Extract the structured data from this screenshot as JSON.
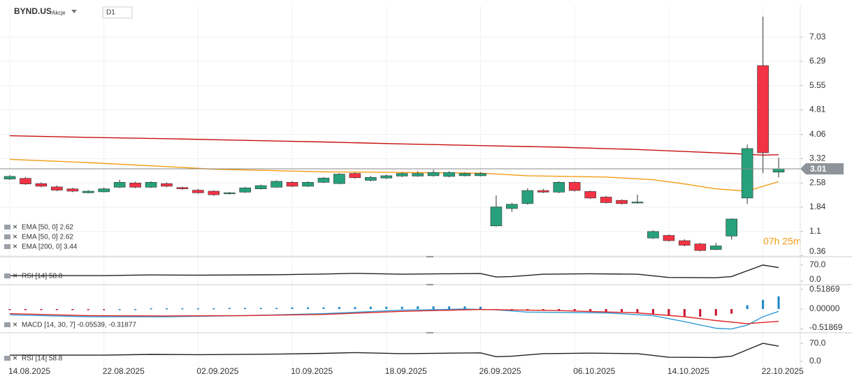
{
  "header": {
    "symbol": "BYND.US",
    "asset_class": "Akcje",
    "timeframe": "D1"
  },
  "chart_data": [
    {
      "type": "candlestick",
      "categories": [
        "14.08.2025",
        null,
        null,
        null,
        null,
        null,
        "22.08.2025",
        null,
        null,
        null,
        null,
        null,
        "02.09.2025",
        null,
        null,
        null,
        null,
        null,
        "10.09.2025",
        null,
        null,
        null,
        null,
        null,
        "18.09.2025",
        null,
        null,
        null,
        null,
        null,
        "26.09.2025",
        null,
        null,
        null,
        null,
        null,
        "06.10.2025",
        null,
        null,
        null,
        null,
        null,
        "14.10.2025",
        null,
        null,
        null,
        null,
        null,
        "22.10.2025",
        null
      ],
      "open": [
        2.7,
        2.72,
        2.56,
        2.46,
        2.4,
        2.28,
        2.31,
        2.45,
        2.58,
        2.45,
        2.56,
        2.44,
        2.36,
        2.33,
        2.25,
        2.3,
        2.4,
        2.45,
        2.6,
        2.48,
        2.6,
        2.56,
        2.87,
        2.66,
        2.73,
        2.79,
        2.79,
        2.8,
        2.78,
        2.8,
        2.8,
        1.27,
        1.8,
        1.95,
        2.35,
        2.3,
        2.6,
        2.32,
        2.15,
        2.05,
        1.98,
        0.9,
        0.98,
        0.82,
        0.72,
        0.55,
        0.96,
        2.12,
        6.16,
        2.91
      ],
      "high": [
        2.82,
        2.76,
        2.6,
        2.5,
        2.43,
        2.36,
        2.44,
        2.68,
        2.62,
        2.63,
        2.6,
        2.47,
        2.4,
        2.36,
        2.31,
        2.46,
        2.53,
        2.66,
        2.64,
        2.63,
        2.76,
        2.88,
        2.9,
        2.8,
        2.84,
        2.91,
        2.94,
        2.98,
        2.94,
        2.9,
        2.91,
        2.2,
        1.97,
        2.42,
        2.4,
        2.63,
        2.63,
        2.35,
        2.18,
        2.08,
        2.22,
        1.14,
        1.01,
        0.86,
        0.75,
        0.75,
        1.5,
        3.75,
        7.65,
        3.35
      ],
      "low": [
        2.67,
        2.52,
        2.45,
        2.33,
        2.3,
        2.26,
        2.29,
        2.43,
        2.42,
        2.43,
        2.45,
        2.37,
        2.25,
        2.19,
        2.23,
        2.28,
        2.38,
        2.43,
        2.45,
        2.46,
        2.58,
        2.54,
        2.71,
        2.63,
        2.7,
        2.76,
        2.77,
        2.77,
        2.75,
        2.78,
        2.78,
        1.25,
        1.7,
        1.92,
        2.27,
        2.27,
        2.32,
        2.09,
        1.95,
        1.92,
        1.95,
        0.87,
        0.79,
        0.65,
        0.49,
        0.53,
        0.85,
        1.94,
        2.88,
        2.75
      ],
      "close": [
        2.78,
        2.55,
        2.48,
        2.36,
        2.33,
        2.33,
        2.4,
        2.6,
        2.45,
        2.6,
        2.48,
        2.4,
        2.28,
        2.22,
        2.28,
        2.43,
        2.5,
        2.63,
        2.48,
        2.6,
        2.73,
        2.85,
        2.74,
        2.75,
        2.8,
        2.87,
        2.87,
        2.9,
        2.9,
        2.87,
        2.87,
        1.85,
        1.93,
        2.35,
        2.3,
        2.6,
        2.35,
        2.12,
        1.98,
        1.95,
        2.0,
        1.1,
        0.82,
        0.68,
        0.52,
        0.66,
        1.48,
        3.63,
        3.5,
        3.01
      ],
      "up_color": "#26a17b",
      "down_color": "#f23345",
      "ylim": [
        0.33,
        7.99
      ],
      "yticks": [
        7.03,
        6.29,
        5.55,
        4.81,
        4.06,
        3.32,
        2.58,
        1.84,
        1.1,
        0.36
      ],
      "grid": true,
      "last": 3.01,
      "countdown": "07h 25m",
      "legend": [
        "EMA [50, 0] 2.62",
        "EMA [50, 0] 2.62",
        "EMA [200, 0] 3.44"
      ],
      "series": [
        {
          "color": "#c81010",
          "x": [
            0,
            5,
            10,
            15,
            20,
            25,
            30,
            35,
            40,
            44,
            46,
            48,
            49
          ],
          "values": [
            4.02,
            3.97,
            3.93,
            3.88,
            3.83,
            3.77,
            3.72,
            3.67,
            3.6,
            3.52,
            3.48,
            3.43,
            3.44
          ]
        },
        {
          "color": "#f39c12",
          "x": [
            0,
            5,
            10,
            13,
            20,
            25,
            30,
            33,
            38,
            41,
            43,
            45,
            47,
            48,
            49
          ],
          "values": [
            3.3,
            3.2,
            3.08,
            3.0,
            2.92,
            2.9,
            2.88,
            2.8,
            2.76,
            2.68,
            2.55,
            2.4,
            2.33,
            2.48,
            2.62
          ]
        }
      ]
    },
    {
      "type": "line",
      "legend": "RSI [14] 58.8",
      "ylim": [
        0,
        100
      ],
      "yticks": [
        {
          "value": 70,
          "label": "70.0"
        },
        {
          "value": 0,
          "label": "0.0"
        }
      ],
      "series": [
        {
          "color": "#222222",
          "x": [
            0,
            6,
            9,
            12,
            17,
            20,
            22,
            25,
            28,
            30,
            31,
            32,
            34,
            37,
            40,
            42,
            45,
            46,
            47,
            48,
            49
          ],
          "values": [
            24,
            24,
            27,
            26,
            28,
            31,
            34,
            30,
            32,
            33,
            18,
            20,
            30,
            32,
            30,
            16,
            15,
            20,
            45,
            70,
            58.8
          ]
        }
      ]
    },
    {
      "type": "macd",
      "legend": "MACD [14, 30, 7] -0.05539, -0.31877",
      "ylim": [
        -0.6,
        0.6
      ],
      "yticks": [
        0.51869,
        {
          "value": 0,
          "label": "0.00000"
        },
        -0.51869
      ],
      "histogram": {
        "up_color": "#1e88c7",
        "down_color": "#c8102e",
        "values": [
          -0.02,
          -0.02,
          -0.02,
          -0.02,
          -0.02,
          -0.02,
          -0.02,
          0,
          0,
          0.02,
          0.02,
          0.02,
          0.02,
          0.02,
          0.03,
          0.03,
          0.03,
          0.03,
          0.04,
          0.04,
          0.04,
          0.05,
          0.05,
          0.06,
          0.06,
          0.06,
          0.07,
          0.07,
          0.07,
          0.07,
          0.06,
          -0.02,
          -0.03,
          -0.04,
          -0.04,
          -0.05,
          -0.05,
          -0.06,
          -0.07,
          -0.08,
          -0.09,
          -0.12,
          -0.16,
          -0.19,
          -0.2,
          -0.17,
          -0.12,
          0.1,
          0.24,
          0.33
        ]
      },
      "series": [
        {
          "color": "#2e9bd6",
          "x": [
            0,
            5,
            10,
            15,
            20,
            25,
            29,
            31,
            33,
            38,
            41,
            43,
            45,
            46,
            47,
            48,
            49
          ],
          "values": [
            -0.15,
            -0.2,
            -0.2,
            -0.17,
            -0.12,
            -0.03,
            0.0,
            -0.02,
            -0.08,
            -0.1,
            -0.17,
            -0.33,
            -0.5,
            -0.52,
            -0.42,
            -0.2,
            -0.06
          ]
        },
        {
          "color": "#e02424",
          "x": [
            0,
            5,
            10,
            15,
            20,
            25,
            30,
            35,
            40,
            43,
            45,
            47,
            49
          ],
          "values": [
            -0.12,
            -0.17,
            -0.18,
            -0.17,
            -0.14,
            -0.06,
            -0.01,
            -0.04,
            -0.1,
            -0.2,
            -0.3,
            -0.38,
            -0.32
          ]
        }
      ]
    },
    {
      "type": "line",
      "legend": "RSI [14] 58.8",
      "ylim": [
        0,
        100
      ],
      "yticks": [
        {
          "value": 70,
          "label": "70.0"
        },
        {
          "value": 0,
          "label": "0.0"
        }
      ],
      "series": [
        {
          "color": "#222222",
          "x": [
            0,
            6,
            9,
            12,
            17,
            20,
            22,
            25,
            28,
            30,
            31,
            32,
            34,
            37,
            40,
            42,
            45,
            46,
            47,
            48,
            49
          ],
          "values": [
            24,
            24,
            27,
            26,
            28,
            31,
            34,
            30,
            32,
            33,
            18,
            20,
            30,
            32,
            30,
            16,
            15,
            20,
            45,
            70,
            58.8
          ]
        }
      ]
    }
  ]
}
